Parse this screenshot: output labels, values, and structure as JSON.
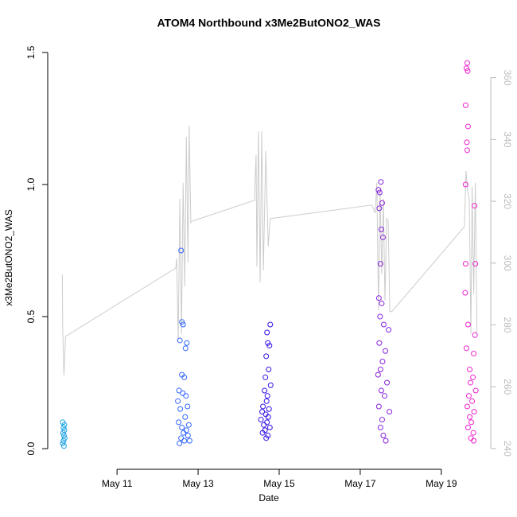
{
  "chart_data": {
    "type": "scatter",
    "title": "ATOM4 Northbound x3Me2ButONO2_WAS",
    "xlabel": "Date",
    "ylabel": "x3Me2ButONO2_WAS",
    "xlim": [
      9.29,
      20.22
    ],
    "ylim": [
      -0.078,
      1.524
    ],
    "y2lim": [
      233.3,
      370.2
    ],
    "xticks": [
      {
        "value": 11,
        "label": "May 11"
      },
      {
        "value": 13,
        "label": "May 13"
      },
      {
        "value": 15,
        "label": "May 15"
      },
      {
        "value": 17,
        "label": "May 17"
      },
      {
        "value": 19,
        "label": "May 19"
      }
    ],
    "yticks": [
      {
        "value": 0,
        "label": "0.0"
      },
      0.5,
      {
        "value": 1,
        "label": "1.0"
      },
      1.5
    ],
    "y2ticks": [
      240,
      260,
      280,
      300,
      320,
      340,
      360
    ],
    "series": [
      {
        "type": "scatter",
        "color": "#1ca3e6",
        "x": [
          9.66,
          9.68,
          9.7,
          9.67,
          9.69,
          9.71,
          9.68,
          9.7,
          9.66,
          9.69
        ],
        "values": [
          0.1,
          0.08,
          0.07,
          0.06,
          0.05,
          0.04,
          0.03,
          0.09,
          0.02,
          0.01
        ]
      },
      {
        "type": "scatter",
        "color": "#3366ff",
        "x": [
          12.58,
          12.6,
          12.63,
          12.55,
          12.72,
          12.69,
          12.6,
          12.66,
          12.53,
          12.62,
          12.7,
          12.5,
          12.74,
          12.56,
          12.68,
          12.52,
          12.77,
          12.6,
          12.71,
          12.64,
          12.75,
          12.58,
          12.79,
          12.66,
          12.54
        ],
        "values": [
          0.75,
          0.48,
          0.47,
          0.41,
          0.4,
          0.38,
          0.28,
          0.27,
          0.22,
          0.21,
          0.2,
          0.18,
          0.16,
          0.15,
          0.12,
          0.1,
          0.09,
          0.08,
          0.07,
          0.06,
          0.05,
          0.04,
          0.03,
          0.03,
          0.02
        ]
      },
      {
        "type": "scatter",
        "color": "#3311e6",
        "x": [
          14.78,
          14.7,
          14.72,
          14.76,
          14.68,
          14.74,
          14.66,
          14.79,
          14.64,
          14.71,
          14.69,
          14.6,
          14.75,
          14.58,
          14.67,
          14.73,
          14.55,
          14.7,
          14.62,
          14.77,
          14.65,
          14.59,
          14.72,
          14.68
        ],
        "values": [
          0.47,
          0.44,
          0.4,
          0.39,
          0.35,
          0.3,
          0.27,
          0.24,
          0.22,
          0.2,
          0.18,
          0.16,
          0.15,
          0.14,
          0.13,
          0.12,
          0.11,
          0.1,
          0.09,
          0.08,
          0.07,
          0.06,
          0.05,
          0.04
        ]
      },
      {
        "type": "scatter",
        "color": "#8822dd",
        "x": [
          17.51,
          17.45,
          17.48,
          17.54,
          17.47,
          17.52,
          17.56,
          17.5,
          17.46,
          17.53,
          17.49,
          17.58,
          17.7,
          17.47,
          17.62,
          17.55,
          17.5,
          17.44,
          17.66,
          17.52,
          17.6,
          17.46,
          17.72,
          17.54,
          17.5,
          17.57,
          17.63
        ],
        "values": [
          1.01,
          0.98,
          0.97,
          0.93,
          0.91,
          0.83,
          0.8,
          0.7,
          0.57,
          0.55,
          0.5,
          0.47,
          0.45,
          0.4,
          0.37,
          0.33,
          0.3,
          0.28,
          0.25,
          0.22,
          0.2,
          0.16,
          0.14,
          0.11,
          0.08,
          0.05,
          0.03
        ]
      },
      {
        "type": "scatter",
        "color": "#ee22cc",
        "x": [
          19.64,
          19.62,
          19.65,
          19.6,
          19.66,
          19.63,
          19.64,
          19.6,
          19.82,
          19.6,
          19.84,
          19.59,
          19.66,
          19.83,
          19.62,
          19.8,
          19.7,
          19.78,
          19.72,
          19.85,
          19.68,
          19.76,
          19.64,
          19.81,
          19.7,
          19.74,
          19.66,
          19.79,
          19.73,
          19.8
        ],
        "values": [
          1.46,
          1.44,
          1.43,
          1.3,
          1.22,
          1.16,
          1.13,
          1.0,
          0.92,
          0.7,
          0.7,
          0.59,
          0.47,
          0.43,
          0.38,
          0.36,
          0.3,
          0.27,
          0.25,
          0.22,
          0.2,
          0.18,
          0.16,
          0.14,
          0.12,
          0.1,
          0.08,
          0.06,
          0.04,
          0.03
        ]
      },
      {
        "type": "line",
        "axis": "y2",
        "color": "#cccccc",
        "x": [
          9.65,
          9.66,
          9.69,
          9.73,
          12.45,
          12.47,
          12.51,
          12.55,
          12.59,
          12.63,
          12.67,
          12.71,
          12.75,
          12.78,
          12.82,
          12.86,
          14.39,
          14.43,
          14.45,
          14.49,
          14.53,
          14.57,
          14.61,
          14.67,
          14.73,
          14.78,
          17.29,
          17.37,
          17.41,
          17.45,
          17.49,
          17.53,
          17.57,
          17.61,
          17.65,
          17.69,
          17.73,
          17.78,
          19.57,
          19.61,
          19.65,
          19.69,
          19.73,
          19.76,
          19.8,
          19.84,
          19.88
        ],
        "values": [
          296.4,
          278.4,
          263.7,
          276.3,
          298.4,
          301.5,
          275.0,
          320.8,
          277.1,
          326.0,
          292.5,
          340.9,
          300.2,
          344.5,
          313.1,
          313.6,
          320.3,
          335.0,
          298.9,
          342.7,
          293.8,
          342.7,
          297.7,
          336.3,
          305.4,
          314.4,
          318.8,
          316.2,
          326.0,
          284.8,
          323.4,
          296.4,
          320.8,
          287.9,
          314.4,
          313.6,
          284.3,
          284.3,
          311.8,
          329.8,
          323.4,
          320.8,
          277.1,
          324.7,
          289.9,
          326.0,
          277.1
        ]
      }
    ]
  }
}
